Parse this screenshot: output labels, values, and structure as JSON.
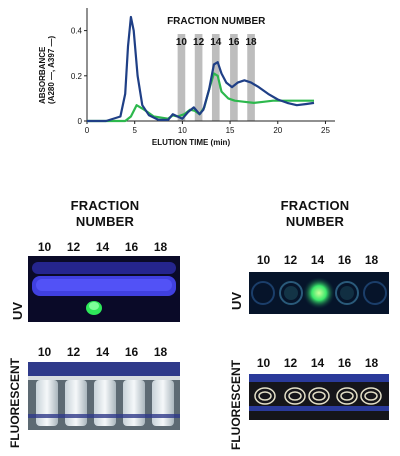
{
  "chart_data": {
    "type": "line",
    "title": "FRACTION NUMBER",
    "xlabel": "ELUTION TIME (min)",
    "ylabel": "ABSORBANCE",
    "ylabel_sub": "(A280 —, A397 —)",
    "xlim": [
      0,
      26
    ],
    "ylim": [
      0,
      0.5
    ],
    "x_ticks": [
      0,
      5,
      10,
      15,
      20,
      25
    ],
    "y_ticks": [
      0,
      0.2,
      0.4
    ],
    "fractions": [
      {
        "label": "10",
        "start": 9.5,
        "end": 10.3
      },
      {
        "label": "12",
        "start": 11.3,
        "end": 12.1
      },
      {
        "label": "14",
        "start": 13.1,
        "end": 13.9
      },
      {
        "label": "16",
        "start": 15.0,
        "end": 15.8
      },
      {
        "label": "18",
        "start": 16.8,
        "end": 17.6
      }
    ],
    "series": [
      {
        "name": "A280",
        "color": "#1f3f86",
        "x": [
          0,
          2,
          3.5,
          4.0,
          4.3,
          4.6,
          4.9,
          5.3,
          5.8,
          6.5,
          7.5,
          8.5,
          9.0,
          9.5,
          10.0,
          10.6,
          11.2,
          11.8,
          12.2,
          12.8,
          13.3,
          13.7,
          14.1,
          14.6,
          15.2,
          15.8,
          16.5,
          17.2,
          18.0,
          19.0,
          20.0,
          21.0,
          22.0,
          23.0,
          23.8
        ],
        "values": [
          0.0,
          0.0,
          0.02,
          0.12,
          0.33,
          0.46,
          0.4,
          0.2,
          0.07,
          0.025,
          0.005,
          0.005,
          0.03,
          0.02,
          0.01,
          0.04,
          0.06,
          0.03,
          0.05,
          0.14,
          0.25,
          0.26,
          0.21,
          0.17,
          0.15,
          0.17,
          0.18,
          0.17,
          0.15,
          0.12,
          0.095,
          0.08,
          0.07,
          0.075,
          0.08
        ]
      },
      {
        "name": "A397",
        "color": "#2db84d",
        "x": [
          0,
          2,
          4.0,
          4.6,
          5.2,
          6.0,
          7.0,
          8.5,
          9.0,
          9.5,
          10.2,
          10.8,
          11.3,
          11.8,
          12.3,
          12.8,
          13.3,
          13.7,
          14.1,
          14.8,
          15.5,
          16.5,
          17.5,
          18.5,
          19.5,
          20.5,
          21.5,
          22.5,
          23.8
        ],
        "values": [
          0.0,
          0.0,
          0.0,
          0.02,
          0.07,
          0.05,
          0.02,
          0.01,
          0.025,
          0.02,
          0.03,
          0.05,
          0.045,
          0.03,
          0.06,
          0.14,
          0.21,
          0.2,
          0.13,
          0.1,
          0.09,
          0.085,
          0.08,
          0.085,
          0.09,
          0.09,
          0.09,
          0.09,
          0.09
        ]
      }
    ]
  },
  "panels": {
    "left": {
      "title_line1": "FRACTION",
      "title_line2": "NUMBER",
      "fractions": [
        "10",
        "12",
        "14",
        "16",
        "18"
      ],
      "uv_label": "UV",
      "fluor_label": "FLUORESCENT"
    },
    "right": {
      "title_line1": "FRACTION",
      "title_line2": "NUMBER",
      "fractions": [
        "10",
        "12",
        "14",
        "16",
        "18"
      ],
      "uv_label": "UV",
      "fluor_label": "FLUORESCENT"
    }
  },
  "colors": {
    "uv_dark": "#0a0a2a",
    "uv_band": "#3a3ad8",
    "uv_green": "#2ee85a",
    "fraction_bar": "#bdbdbd"
  }
}
